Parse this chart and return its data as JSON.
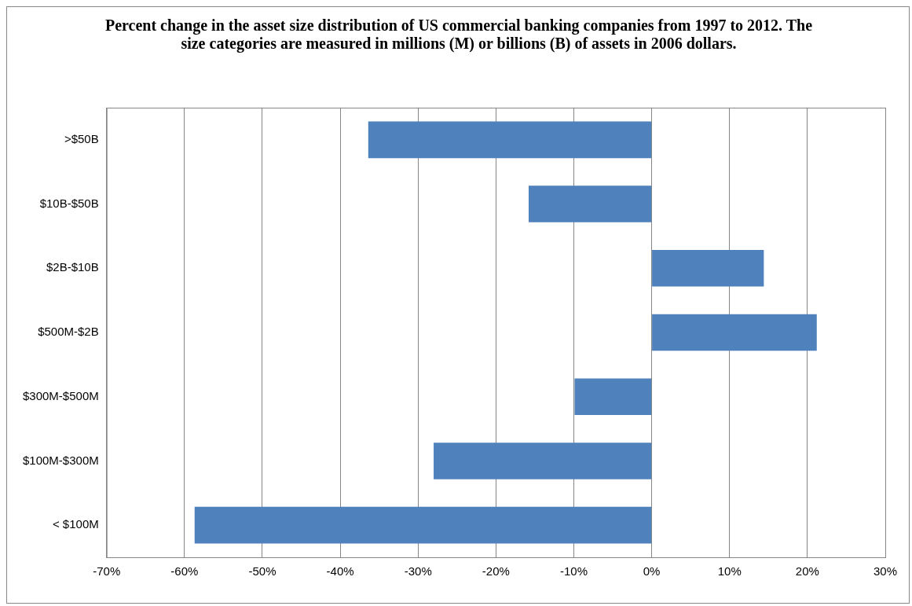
{
  "chart_data": {
    "type": "bar",
    "orientation": "horizontal",
    "title": "Percent change in the asset size distribution of US commercial banking companies from 1997 to 2012.  The size categories are measured in millions (M) or billions (B) of assets in 2006 dollars.",
    "categories": [
      ">$50B",
      "$10B-$50B",
      "$2B-$10B",
      "$500M-$2B",
      "$300M-$500M",
      "$100M-$300M",
      "< $100M"
    ],
    "values": [
      -36.4,
      -15.8,
      14.4,
      21.2,
      -9.9,
      -28.0,
      -58.7
    ],
    "color": "#4f81bd",
    "xlim": [
      -70,
      30
    ],
    "xticks": [
      {
        "value": -70,
        "label": "-70%"
      },
      {
        "value": -60,
        "label": "-60%"
      },
      {
        "value": -50,
        "label": "-50%"
      },
      {
        "value": -40,
        "label": "-40%"
      },
      {
        "value": -30,
        "label": "-30%"
      },
      {
        "value": -20,
        "label": "-20%"
      },
      {
        "value": -10,
        "label": "-10%"
      },
      {
        "value": 0,
        "label": "0%"
      },
      {
        "value": 10,
        "label": "10%"
      },
      {
        "value": 20,
        "label": "20%"
      },
      {
        "value": 30,
        "label": "30%"
      }
    ],
    "grid": "x",
    "legend": false
  }
}
